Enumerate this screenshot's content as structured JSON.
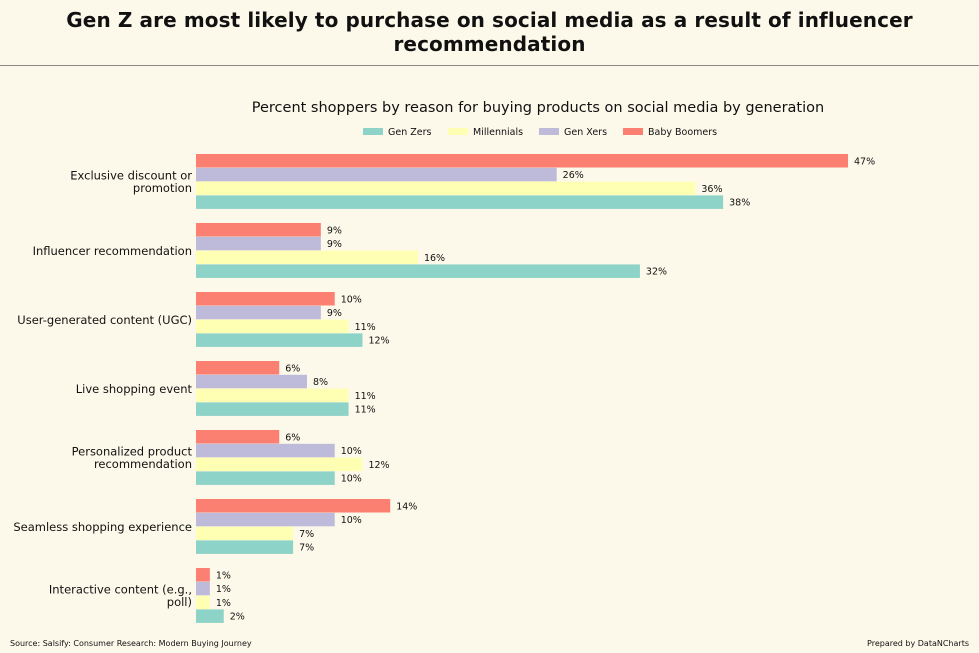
{
  "header": {
    "title": "Gen Z are most likely to purchase on social media as a result of influencer recommendation"
  },
  "footer": {
    "source": "Source: Salsify: Consumer Research: Modern Buying Journey",
    "credit": "Prepared by DataNCharts"
  },
  "chart_data": {
    "type": "bar",
    "orientation": "horizontal",
    "title": "Percent shoppers by reason for buying products on social media by generation",
    "xlabel": "",
    "ylabel": "",
    "xlim": [
      0,
      50
    ],
    "value_suffix": "%",
    "grid": false,
    "legend_position": "top-center",
    "categories": [
      [
        "Exclusive discount or",
        "promotion"
      ],
      [
        "Influencer recommendation"
      ],
      [
        "User-generated content (UGC)"
      ],
      [
        "Live shopping event"
      ],
      [
        "Personalized product",
        "recommendation"
      ],
      [
        "Seamless shopping experience"
      ],
      [
        "Interactive content (e.g.,",
        "poll)"
      ]
    ],
    "series": [
      {
        "name": "Gen Zers",
        "color": "#8dd3c7",
        "values": [
          38,
          32,
          12,
          11,
          10,
          7,
          2
        ]
      },
      {
        "name": "Millennials",
        "color": "#ffffb3",
        "values": [
          36,
          16,
          11,
          11,
          12,
          7,
          1
        ]
      },
      {
        "name": "Gen Xers",
        "color": "#bebada",
        "values": [
          26,
          9,
          9,
          8,
          10,
          10,
          1
        ]
      },
      {
        "name": "Baby Boomers",
        "color": "#fb8072",
        "values": [
          47,
          9,
          10,
          6,
          6,
          14,
          1
        ]
      }
    ]
  }
}
